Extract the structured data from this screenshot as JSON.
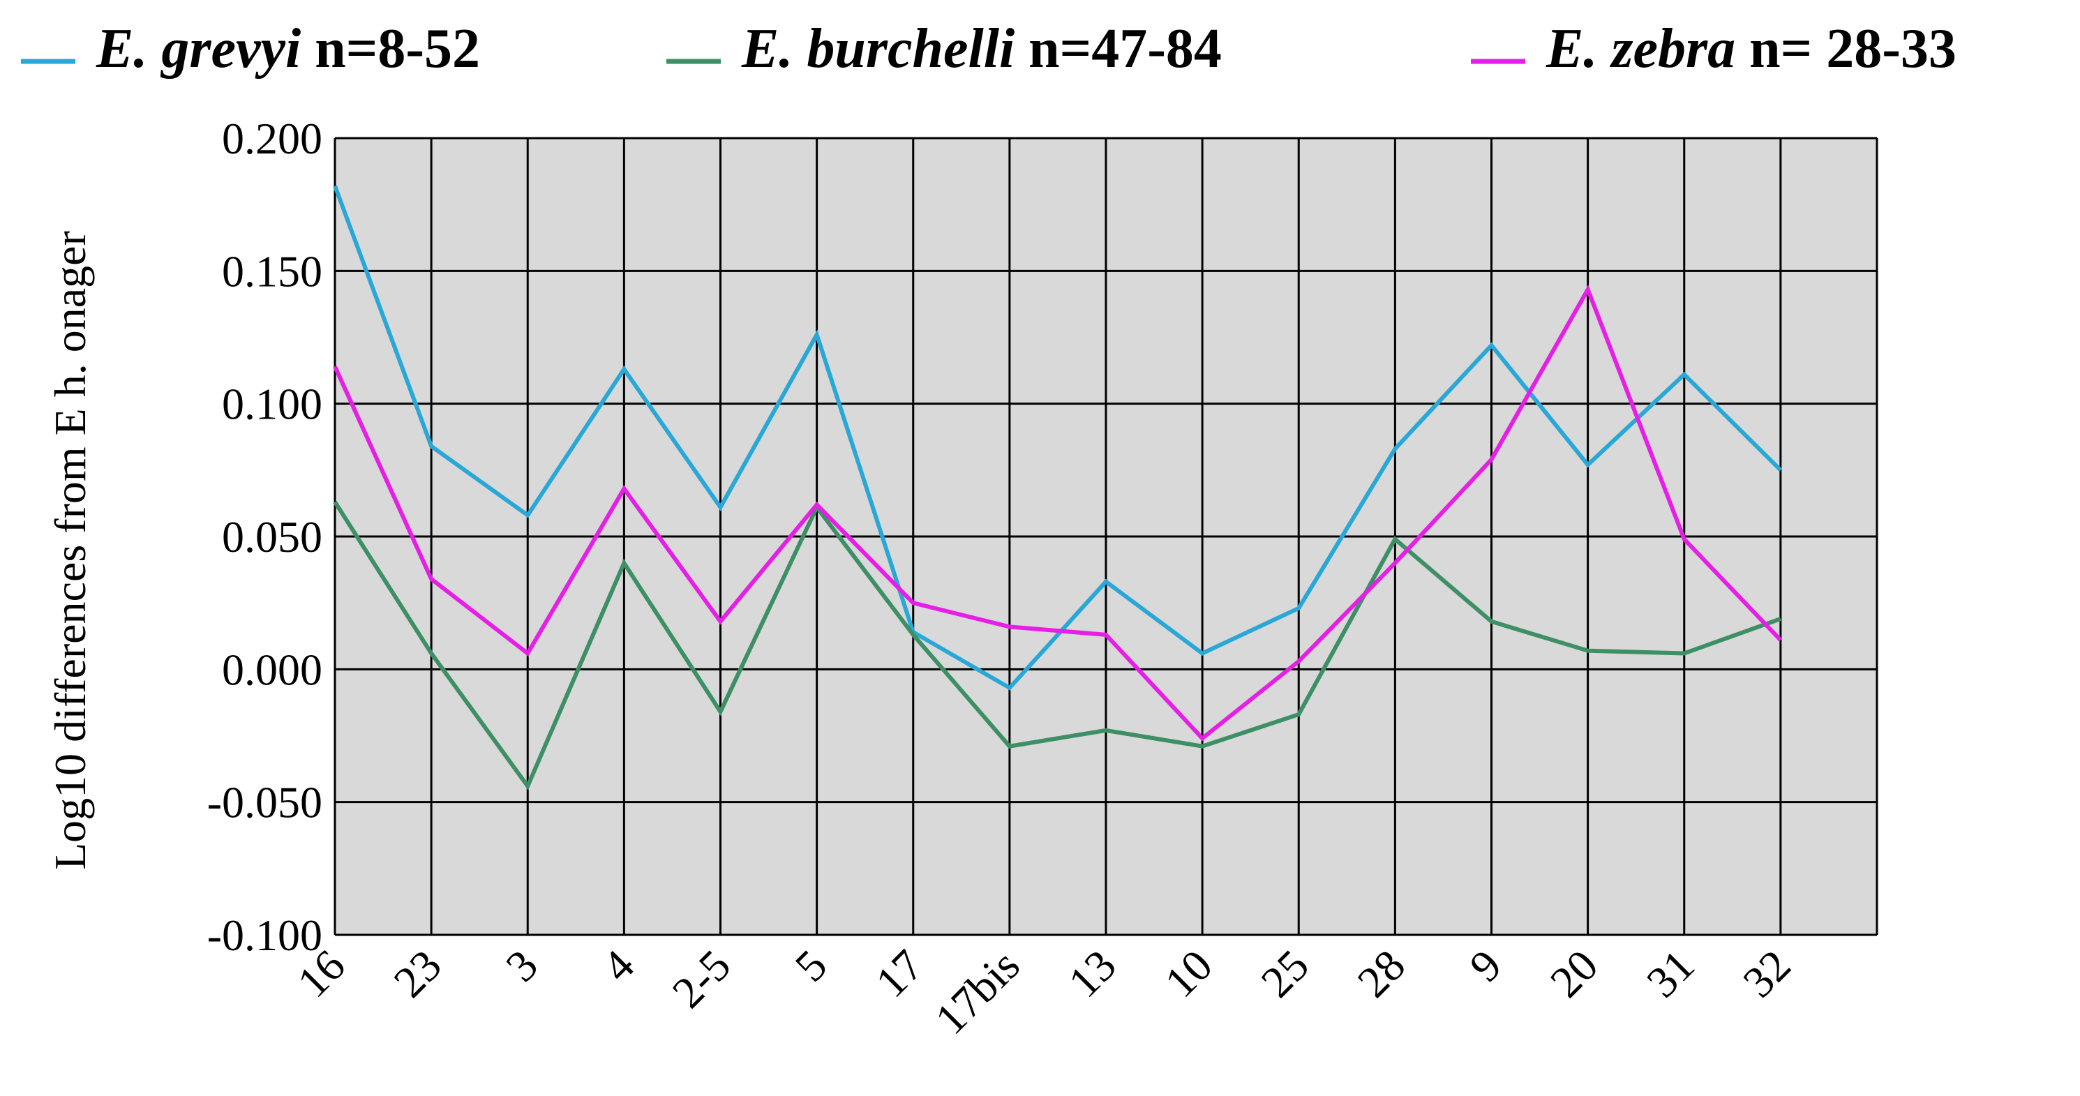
{
  "chart_data": {
    "type": "line",
    "title": "",
    "xlabel": "",
    "ylabel": "Log10 differences from E h. onager",
    "ylim": [
      -0.1,
      0.2
    ],
    "y_ticks": [
      "0.200",
      "0.150",
      "0.100",
      "0.050",
      "0.000",
      "-0.050",
      "-0.100"
    ],
    "categories": [
      "16",
      "23",
      "3",
      "4",
      "2-5",
      "5",
      "17",
      "17bis",
      "13",
      "10",
      "25",
      "28",
      "9",
      "20",
      "31",
      "32"
    ],
    "grid": true,
    "plot_background": "#d9d9d9",
    "legend_position": "top",
    "series": [
      {
        "name": "E. grevyi",
        "legend_n": "n=8-52",
        "color": "#29a8d8",
        "values": [
          0.182,
          0.084,
          0.058,
          0.113,
          0.061,
          0.126,
          0.014,
          -0.007,
          0.033,
          0.006,
          0.023,
          0.083,
          0.122,
          0.077,
          0.111,
          0.075
        ]
      },
      {
        "name": "E. burchelli",
        "legend_n": "n=47-84",
        "color": "#3d8f65",
        "values": [
          0.063,
          0.006,
          -0.044,
          0.04,
          -0.016,
          0.061,
          0.013,
          -0.029,
          -0.023,
          -0.029,
          -0.017,
          0.049,
          0.018,
          0.007,
          0.006,
          0.019
        ]
      },
      {
        "name": "E. zebra",
        "legend_n": "n= 28-33",
        "color": "#e61ee6",
        "values": [
          0.114,
          0.034,
          0.006,
          0.068,
          0.018,
          0.062,
          0.025,
          0.016,
          0.013,
          -0.026,
          0.003,
          0.04,
          0.079,
          0.143,
          0.049,
          0.011
        ]
      }
    ]
  }
}
